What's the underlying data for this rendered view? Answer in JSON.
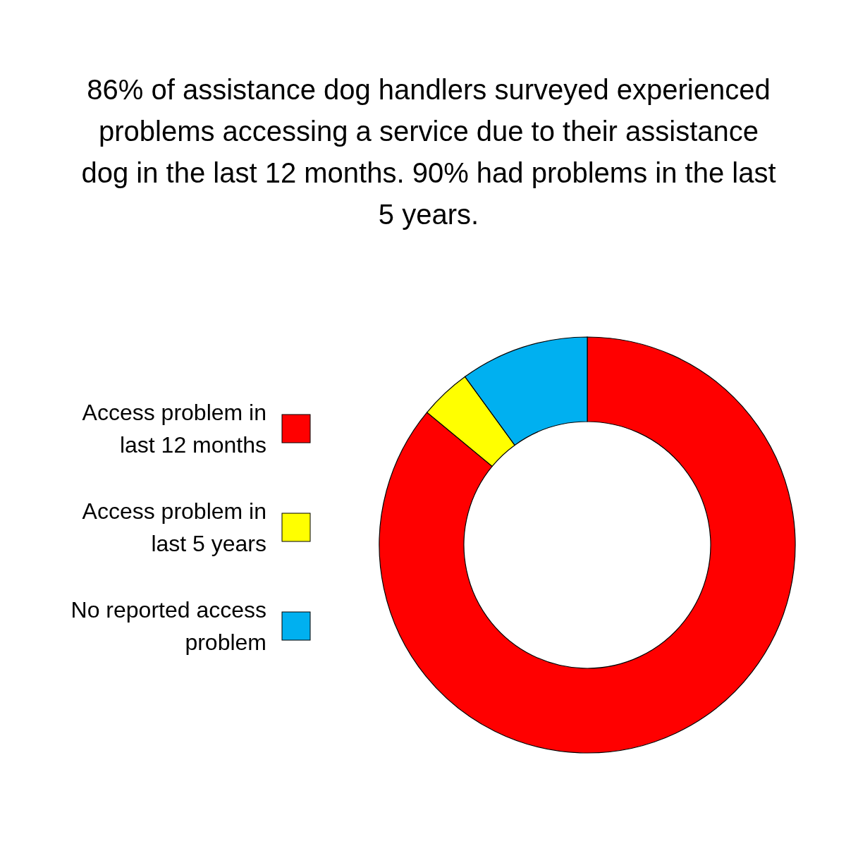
{
  "chart_data": {
    "type": "donut",
    "title": "86% of assistance dog handlers surveyed experienced problems accessing a service due to their assistance dog in the last 12 months. 90% had problems in the last 5 years.",
    "categories": [
      "Access problem in last 12 months",
      "Access problem in last 5 years",
      "No reported access problem"
    ],
    "values": [
      86,
      4,
      10
    ],
    "colors": [
      "#ff0000",
      "#ffff00",
      "#00b0f0"
    ],
    "legend": "left"
  }
}
